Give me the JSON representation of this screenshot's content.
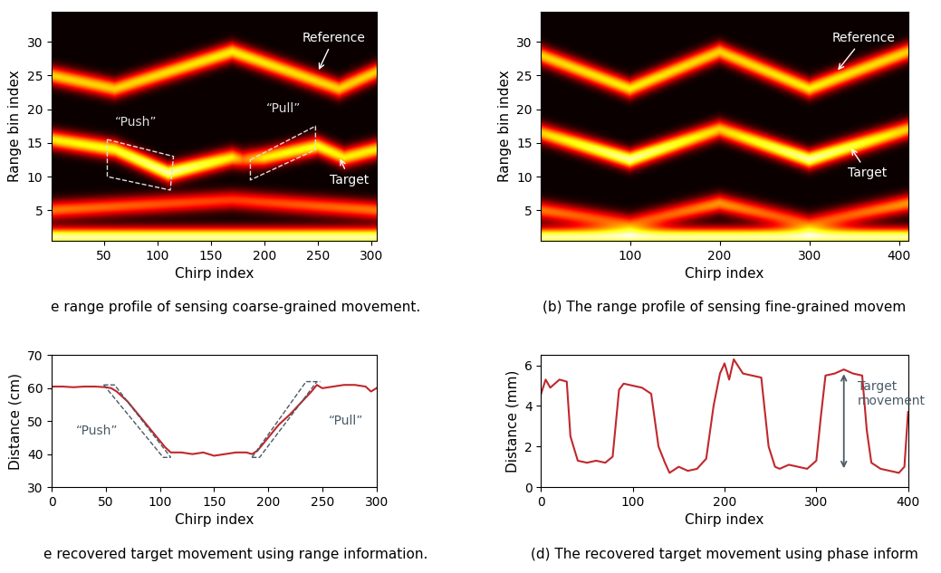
{
  "chart_data": [
    {
      "type": "heatmap",
      "caption": "e range profile of sensing coarse-grained movement.",
      "x_label": "Chirp index",
      "y_label": "Range bin index",
      "xlim": [
        1,
        305
      ],
      "ylim": [
        0.5,
        34.5
      ],
      "xticks": [
        50,
        100,
        150,
        200,
        250,
        300
      ],
      "yticks": [
        5,
        10,
        15,
        20,
        25,
        30
      ],
      "tracks": [
        {
          "name": "Reference",
          "x": [
            0,
            60,
            170,
            270,
            305
          ],
          "y": [
            25,
            23,
            28.5,
            23,
            25.5
          ],
          "intensity": [
            0.75,
            0.75,
            0.8,
            0.75,
            0.75
          ]
        },
        {
          "name": "Target",
          "x": [
            0,
            60,
            110,
            170,
            180,
            200,
            250,
            275,
            305
          ],
          "y": [
            15.5,
            14,
            10.5,
            12.8,
            12.5,
            12.8,
            14.5,
            12.8,
            14
          ],
          "intensity": [
            0.8,
            0.85,
            1.0,
            0.8,
            0.6,
            0.8,
            0.85,
            0.8,
            0.8
          ]
        },
        {
          "x": [
            0,
            170,
            305
          ],
          "y": [
            5,
            6.5,
            5
          ],
          "intensity": [
            0.6,
            0.5,
            0.6
          ]
        },
        {
          "x": [
            0,
            305
          ],
          "y": [
            1,
            1
          ],
          "intensity": [
            1.0,
            1.0
          ]
        }
      ],
      "annotations": [
        {
          "text": "Reference",
          "x": 250,
          "y": 25.5,
          "text_x": 265,
          "text_y": 30
        },
        {
          "text": "Target",
          "x": 270,
          "y": 13,
          "text_x": 280,
          "text_y": 9
        }
      ],
      "boxes": [
        {
          "text": "“Push”",
          "text_x": 80,
          "text_y": 17.5,
          "corners": [
            [
              53,
              15.5
            ],
            [
              115,
              13
            ],
            [
              112,
              8
            ],
            [
              53,
              10
            ]
          ]
        },
        {
          "text": "“Pull”",
          "text_x": 218,
          "text_y": 19.5,
          "corners": [
            [
              187,
              12.5
            ],
            [
              248,
              17.5
            ],
            [
              248,
              14
            ],
            [
              187,
              9.5
            ]
          ]
        }
      ]
    },
    {
      "type": "heatmap",
      "caption": "(b) The range profile of sensing fine-grained movem",
      "x_label": "Chirp index",
      "y_label": "Range bin index",
      "xlim": [
        1,
        410
      ],
      "ylim": [
        0.5,
        34.5
      ],
      "xticks": [
        100,
        200,
        300,
        400
      ],
      "yticks": [
        5,
        10,
        15,
        20,
        25,
        30
      ],
      "tracks": [
        {
          "name": "Reference",
          "x": [
            0,
            100,
            200,
            300,
            410
          ],
          "y": [
            28,
            23,
            28.5,
            23,
            28.5
          ],
          "intensity": [
            0.75,
            0.8,
            0.75,
            0.8,
            0.75
          ]
        },
        {
          "name": "Target",
          "x": [
            0,
            100,
            200,
            300,
            410
          ],
          "y": [
            16.5,
            12.5,
            17,
            12.5,
            17
          ],
          "intensity": [
            0.75,
            1.0,
            0.75,
            1.0,
            0.75
          ]
        },
        {
          "x": [
            0,
            100,
            200,
            300,
            410
          ],
          "y": [
            5,
            3,
            6,
            3,
            6
          ],
          "intensity": [
            0.6,
            0.5,
            0.65,
            0.5,
            0.65
          ]
        },
        {
          "x": [
            0,
            410
          ],
          "y": [
            1,
            1
          ],
          "intensity": [
            1.0,
            1.0
          ]
        }
      ],
      "annotations": [
        {
          "text": "Reference",
          "x": 330,
          "y": 25.5,
          "text_x": 360,
          "text_y": 30
        },
        {
          "text": "Target",
          "x": 345,
          "y": 14.5,
          "text_x": 365,
          "text_y": 10
        }
      ],
      "boxes": []
    },
    {
      "type": "line",
      "caption": "e recovered target movement using range information.",
      "x_label": "Chirp index",
      "y_label": "Distance (cm)",
      "xlim": [
        0,
        300
      ],
      "ylim": [
        30,
        70
      ],
      "xticks": [
        0,
        50,
        100,
        150,
        200,
        250,
        300
      ],
      "yticks": [
        30,
        40,
        50,
        60,
        70
      ],
      "series": [
        {
          "color": "#c0282d",
          "x": [
            0,
            10,
            20,
            30,
            40,
            50,
            55,
            60,
            70,
            80,
            90,
            100,
            105,
            110,
            120,
            130,
            140,
            150,
            160,
            170,
            180,
            185,
            190,
            200,
            210,
            220,
            230,
            240,
            245,
            250,
            260,
            270,
            280,
            290,
            295,
            300
          ],
          "values": [
            60.5,
            60.5,
            60.3,
            60.5,
            60.5,
            60.3,
            60,
            59,
            56,
            52,
            48,
            44,
            42,
            40.5,
            40.5,
            40,
            40.5,
            39.5,
            40,
            40.5,
            40.5,
            40,
            41,
            45,
            49,
            52,
            55.5,
            59,
            61,
            60,
            60.5,
            61,
            61,
            60.5,
            59,
            60
          ]
        }
      ],
      "guides": [
        {
          "text": "“Push”",
          "text_x": 42,
          "text_y": 46,
          "lines": [
            [
              [
                48,
                61
              ],
              [
                103,
                39
              ],
              [
                110,
                39
              ]
            ],
            [
              [
                48,
                61
              ],
              [
                58,
                61
              ],
              [
                110,
                39
              ]
            ]
          ]
        },
        {
          "text": "“Pull”",
          "text_x": 272,
          "text_y": 49,
          "lines": [
            [
              [
                185,
                39
              ],
              [
                192,
                39
              ],
              [
                245,
                62
              ]
            ],
            [
              [
                185,
                39
              ],
              [
                235,
                62
              ],
              [
                248,
                62
              ]
            ]
          ]
        }
      ]
    },
    {
      "type": "line",
      "caption": "(d) The recovered target movement using phase inform",
      "x_label": "Chirp index",
      "y_label": "Distance (mm)",
      "xlim": [
        0,
        400
      ],
      "ylim": [
        0,
        6.5
      ],
      "xticks": [
        0,
        100,
        200,
        300,
        400
      ],
      "yticks": [
        0,
        2,
        4,
        6
      ],
      "series": [
        {
          "color": "#c0282d",
          "x": [
            0,
            5,
            10,
            20,
            28,
            32,
            40,
            50,
            60,
            70,
            78,
            85,
            90,
            100,
            110,
            120,
            128,
            135,
            140,
            150,
            160,
            170,
            180,
            188,
            195,
            200,
            205,
            210,
            220,
            230,
            240,
            248,
            255,
            260,
            270,
            280,
            290,
            300,
            305,
            310,
            320,
            330,
            340,
            350,
            355,
            360,
            370,
            380,
            390,
            396,
            400
          ],
          "values": [
            4.6,
            5.3,
            4.9,
            5.3,
            5.2,
            2.5,
            1.3,
            1.2,
            1.3,
            1.2,
            1.5,
            4.8,
            5.1,
            5.0,
            4.9,
            4.6,
            2.0,
            1.2,
            0.7,
            1.0,
            0.8,
            0.9,
            1.4,
            4.0,
            5.6,
            6.1,
            5.3,
            6.3,
            5.6,
            5.5,
            5.4,
            2.0,
            1.0,
            0.9,
            1.1,
            1.0,
            0.9,
            1.3,
            3.5,
            5.5,
            5.6,
            5.8,
            5.6,
            5.5,
            2.8,
            1.2,
            0.9,
            0.8,
            0.7,
            1.0,
            3.7
          ]
        }
      ],
      "arrow": {
        "text": "Target\nmovement",
        "x": 330,
        "y": [
          0.8,
          5.7
        ],
        "text_x": 345,
        "text_y": 4.6
      }
    }
  ]
}
